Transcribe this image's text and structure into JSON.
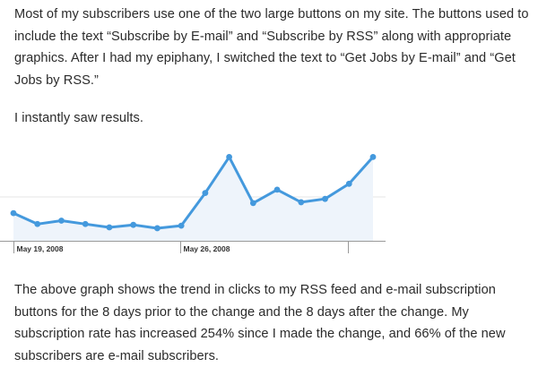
{
  "article": {
    "paragraph1": "Most of my subscribers use one of the two large buttons on my site. The buttons used to include the text “Subscribe by E-mail” and “Subscribe by RSS” along with appropriate graphics. After I had my epiphany, I switched the text to “Get Jobs by E-mail” and “Get Jobs by RSS.”",
    "paragraph2": "I instantly saw results.",
    "paragraph3": "The above graph shows the trend in clicks to my RSS feed and e-mail subscription buttons for the 8 days prior to the change and the 8 days after the change. My subscription rate has increased 254% since I made the change, and 66% of the new subscribers are e-mail subscribers."
  },
  "chart_data": {
    "type": "area",
    "title": "",
    "xlabel": "",
    "ylabel": "",
    "x_tick_labels": [
      "May 19, 2008",
      "May 26, 2008"
    ],
    "x": [
      "May 18, 2008",
      "May 19, 2008",
      "May 20, 2008",
      "May 21, 2008",
      "May 22, 2008",
      "May 23, 2008",
      "May 24, 2008",
      "May 25, 2008",
      "May 26, 2008",
      "May 27, 2008",
      "May 28, 2008",
      "May 29, 2008",
      "May 30, 2008",
      "May 31, 2008",
      "June 1, 2008",
      "June 2, 2008"
    ],
    "values": [
      33,
      20,
      24,
      20,
      16,
      19,
      15,
      18,
      57,
      100,
      45,
      61,
      46,
      50,
      68,
      100
    ],
    "ylim": [
      0,
      110
    ],
    "y_axis_visible": false,
    "grid": "single horizontal gridline",
    "line_color": "#4499dd",
    "fill_color": "#eef4fb",
    "grid_color": "#e5e5e5",
    "axis_color": "#999999"
  }
}
